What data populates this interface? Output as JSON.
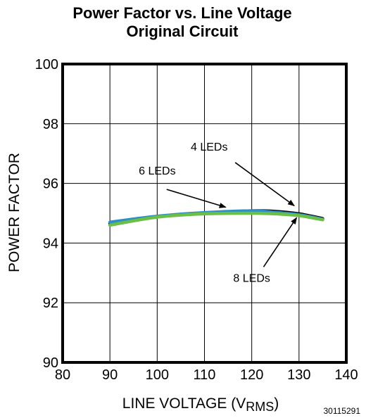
{
  "chart_data": {
    "type": "line",
    "title": [
      "Power Factor vs. Line Voltage",
      "Original Circuit"
    ],
    "xlabel": {
      "text": "LINE VOLTAGE (V",
      "sub": "RMS",
      "close": ")"
    },
    "ylabel": "POWER FACTOR",
    "xlim": [
      80,
      140
    ],
    "ylim": [
      90,
      100
    ],
    "xticks": [
      80,
      90,
      100,
      110,
      120,
      130,
      140
    ],
    "yticks": [
      90,
      92,
      94,
      96,
      98,
      100
    ],
    "grid": true,
    "series": [
      {
        "name": "4 LEDs",
        "color": "#000000",
        "x": [
          90,
          100,
          110,
          120,
          125,
          130,
          135
        ],
        "y": [
          94.65,
          94.88,
          95.0,
          95.08,
          95.06,
          94.98,
          94.82
        ]
      },
      {
        "name": "6 LEDs",
        "color": "#2e8fc8",
        "x": [
          90,
          100,
          110,
          120,
          125,
          130,
          135
        ],
        "y": [
          94.7,
          94.9,
          95.02,
          95.08,
          95.03,
          94.95,
          94.8
        ]
      },
      {
        "name": "8 LEDs",
        "color": "#6abf45",
        "x": [
          90,
          100,
          110,
          120,
          125,
          130,
          135
        ],
        "y": [
          94.6,
          94.87,
          94.98,
          95.0,
          94.98,
          94.92,
          94.78
        ]
      }
    ],
    "annotations": [
      {
        "label": "4 LEDs",
        "text_at": [
          111,
          97.1
        ],
        "arrow_from": [
          116.5,
          96.7
        ],
        "arrow_to": [
          129,
          95.25
        ]
      },
      {
        "label": "6 LEDs",
        "text_at": [
          100,
          96.3
        ],
        "arrow_from": [
          102,
          95.8
        ],
        "arrow_to": [
          114.5,
          95.2
        ]
      },
      {
        "label": "8 LEDs",
        "text_at": [
          120,
          92.7
        ],
        "arrow_from": [
          122.5,
          93.2
        ],
        "arrow_to": [
          129.5,
          94.85
        ]
      }
    ]
  },
  "figure_id": "30115291"
}
